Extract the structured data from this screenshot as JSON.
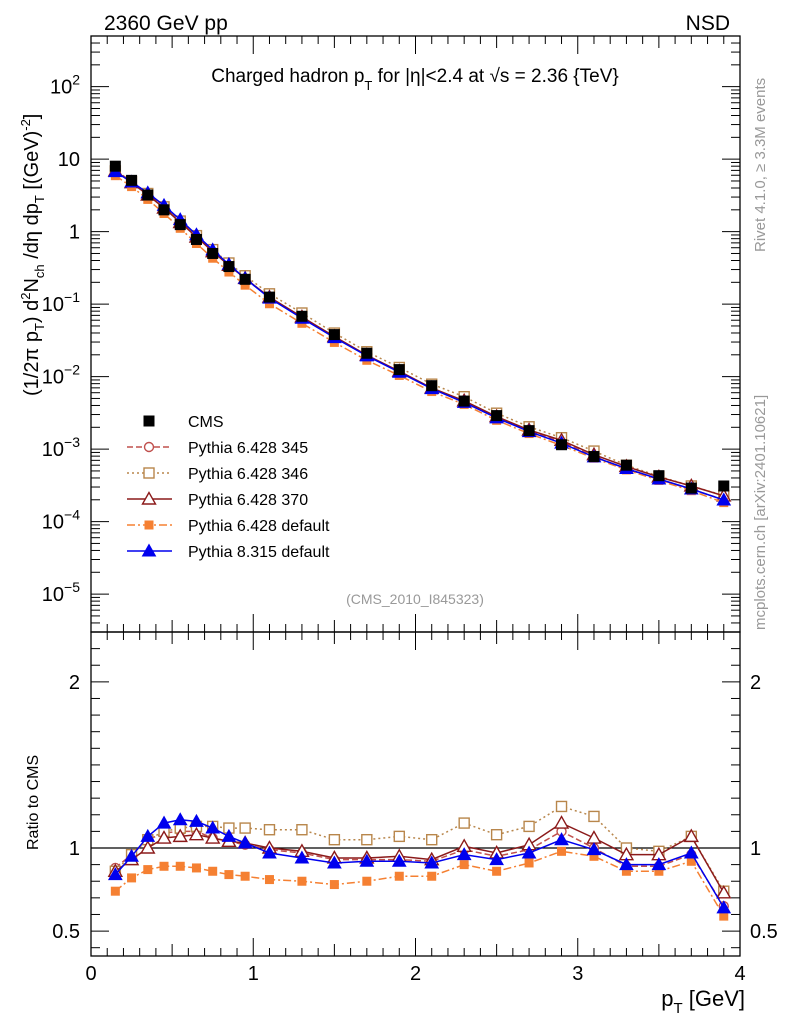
{
  "header": {
    "left_label": "2360 GeV pp",
    "right_label": "NSD",
    "side_top": "Rivet 4.1.0, ≥ 3.3M events",
    "side_bottom": "mcplots.cern.ch [arXiv:2401.10621]"
  },
  "chart_data": {
    "type": "line",
    "title_parts": {
      "t1": "Charged hadron p",
      "t1_sub": "T",
      "t2": " for |η|<2.4 at √s = 2.36 {TeV}"
    },
    "analysis_label": "(CMS_2010_I845323)",
    "y_axis_label": "(1/2π p_T) d²N_ch/dη dp_T [(GeV)⁻²]",
    "x_axis_label": {
      "main": "p",
      "sub": "T",
      "unit": " [GeV]"
    },
    "ratio_axis_label": "Ratio to CMS",
    "xlim": [
      0,
      4
    ],
    "ylim_log": [
      3e-06,
      500
    ],
    "ratio_ylim": [
      0.35,
      2.3
    ],
    "x_tick_labels": [
      "0",
      "1",
      "2",
      "3",
      "4"
    ],
    "ratio_tick_labels": [
      "0.5",
      "1",
      "2"
    ],
    "y_tick_labels": [
      {
        "base": "10",
        "exp": "−5"
      },
      {
        "base": "10",
        "exp": "−4"
      },
      {
        "base": "10",
        "exp": "−3"
      },
      {
        "base": "10",
        "exp": "−2"
      },
      {
        "base": "10",
        "exp": "−1"
      },
      {
        "base": "1",
        "exp": ""
      },
      {
        "base": "10",
        "exp": ""
      },
      {
        "base": "10",
        "exp": "2"
      }
    ],
    "x": [
      0.15,
      0.25,
      0.35,
      0.45,
      0.55,
      0.65,
      0.75,
      0.85,
      0.95,
      1.1,
      1.3,
      1.5,
      1.7,
      1.9,
      2.1,
      2.3,
      2.5,
      2.7,
      2.9,
      3.1,
      3.3,
      3.5,
      3.7,
      3.9
    ],
    "data": {
      "name": "CMS",
      "values": [
        8.0,
        5.1,
        3.2,
        2.0,
        1.25,
        0.78,
        0.5,
        0.33,
        0.22,
        0.125,
        0.068,
        0.038,
        0.021,
        0.0125,
        0.0075,
        0.0046,
        0.0029,
        0.0018,
        0.00115,
        0.00079,
        0.0006,
        0.00043,
        0.00029,
        0.00031
      ]
    },
    "series": [
      {
        "name": "Pythia 6.428 345",
        "color": "#c0504d",
        "marker": "circle-open",
        "dash": "6,3",
        "ratio": [
          0.88,
          0.96,
          1.05,
          1.09,
          1.1,
          1.1,
          1.06,
          1.04,
          1.02,
          0.99,
          0.97,
          0.93,
          0.93,
          0.93,
          0.92,
          0.99,
          0.95,
          0.99,
          1.1,
          1.0,
          0.89,
          0.89,
          0.96,
          0.65
        ]
      },
      {
        "name": "Pythia 6.428 346",
        "color": "#b8864b",
        "marker": "square-open",
        "dash": "2,3",
        "ratio": [
          0.86,
          0.96,
          1.05,
          1.1,
          1.12,
          1.13,
          1.13,
          1.12,
          1.12,
          1.11,
          1.11,
          1.05,
          1.05,
          1.07,
          1.05,
          1.15,
          1.08,
          1.13,
          1.25,
          1.19,
          1.0,
          0.98,
          1.07,
          0.74
        ]
      },
      {
        "name": "Pythia 6.428 370",
        "color": "#8b1a1a",
        "marker": "triangle-open",
        "dash": "",
        "ratio": [
          0.86,
          0.93,
          1.0,
          1.06,
          1.07,
          1.08,
          1.06,
          1.04,
          1.03,
          1.0,
          0.98,
          0.94,
          0.94,
          0.95,
          0.93,
          1.01,
          0.97,
          1.02,
          1.15,
          1.06,
          0.96,
          0.96,
          1.07,
          0.73
        ]
      },
      {
        "name": "Pythia 6.428 default",
        "color": "#f58032",
        "marker": "square-filled",
        "dash": "8,3,2,3",
        "ratio": [
          0.74,
          0.82,
          0.87,
          0.89,
          0.89,
          0.88,
          0.86,
          0.84,
          0.83,
          0.81,
          0.8,
          0.78,
          0.8,
          0.83,
          0.83,
          0.9,
          0.86,
          0.91,
          0.98,
          0.95,
          0.86,
          0.86,
          0.92,
          0.59
        ]
      },
      {
        "name": "Pythia 8.315 default",
        "color": "#0000ee",
        "marker": "triangle-filled",
        "dash": "",
        "ratio": [
          0.84,
          0.95,
          1.07,
          1.15,
          1.17,
          1.16,
          1.12,
          1.07,
          1.03,
          0.97,
          0.94,
          0.91,
          0.92,
          0.92,
          0.91,
          0.96,
          0.93,
          0.97,
          1.05,
          0.99,
          0.9,
          0.9,
          0.97,
          0.64
        ]
      }
    ]
  }
}
